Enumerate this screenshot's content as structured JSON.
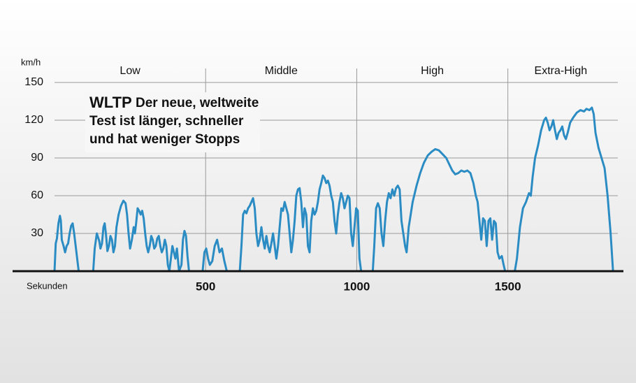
{
  "chart_data": {
    "type": "line",
    "title": "WLTP",
    "subtitle": [
      "Der neue, weltweite",
      "Test ist länger, schneller",
      "und hat weniger Stopps"
    ],
    "y_label": "km/h",
    "x_label": "Sekunden",
    "phases": [
      "Low",
      "Middle",
      "High",
      "Extra-High"
    ],
    "xlim": [
      0,
      1850
    ],
    "xticks": [
      500,
      1000,
      1500
    ],
    "ylim": [
      0,
      150
    ],
    "yticks": [
      30,
      60,
      90,
      120,
      150
    ],
    "grid": true,
    "series": [
      {
        "name": "WLTP",
        "color": "#2b8cc4",
        "x": [
          0,
          4,
          8,
          13,
          18,
          21,
          24,
          30,
          35,
          40,
          45,
          50,
          55,
          60,
          65,
          70,
          75,
          80,
          128,
          133,
          140,
          148,
          152,
          157,
          162,
          166,
          170,
          175,
          180,
          185,
          190,
          195,
          200,
          205,
          212,
          220,
          228,
          235,
          240,
          245,
          250,
          256,
          262,
          266,
          270,
          275,
          280,
          285,
          290,
          295,
          300,
          305,
          310,
          315,
          320,
          325,
          330,
          335,
          340,
          345,
          350,
          355,
          360,
          365,
          370,
          375,
          380,
          385,
          390,
          395,
          400,
          405,
          410,
          412,
          420,
          425,
          430,
          435,
          440,
          445,
          490,
          496,
          502,
          508,
          514,
          522,
          530,
          538,
          546,
          554,
          562,
          570,
          613,
          618.5,
          624,
          629.5,
          635,
          640.5,
          646,
          651.5,
          657,
          662.5,
          668,
          673.5,
          679,
          684.5,
          690,
          695.5,
          701,
          706.5,
          712,
          717.5,
          723,
          728.5,
          734,
          739.5,
          745,
          750.5,
          756,
          761.5,
          767,
          772.5,
          778,
          783.5,
          789,
          794.5,
          800,
          805.5,
          811,
          816.5,
          822,
          827.5,
          833,
          838.5,
          844,
          849.5,
          855,
          860.5,
          866,
          871.5,
          877,
          882.5,
          888,
          893.5,
          899,
          904.5,
          910,
          915.5,
          921,
          926.5,
          932,
          937.5,
          943,
          948.5,
          954,
          959.5,
          965,
          970.5,
          976,
          981.5,
          987,
          992.5,
          998,
          1003.5,
          1009,
          1014.5,
          1053,
          1058,
          1064,
          1070,
          1076,
          1082,
          1088,
          1094,
          1100,
          1106,
          1112,
          1118,
          1124,
          1130,
          1136,
          1142,
          1148,
          1154,
          1160,
          1165,
          1172,
          1185,
          1198,
          1210,
          1222,
          1235,
          1248,
          1260,
          1272,
          1284,
          1296,
          1306,
          1316,
          1326,
          1336,
          1346,
          1356,
          1366,
          1376,
          1386,
          1394,
          1400,
          1406,
          1412,
          1418,
          1424,
          1430,
          1436,
          1442,
          1448,
          1454,
          1460,
          1466,
          1472,
          1480,
          1486,
          1491,
          1523,
          1530,
          1540,
          1550,
          1560,
          1570,
          1576,
          1582,
          1590,
          1600,
          1610,
          1620,
          1626,
          1632,
          1638,
          1644,
          1650,
          1656,
          1662,
          1668,
          1674,
          1680,
          1686,
          1692,
          1698,
          1706,
          1716,
          1728,
          1740,
          1752,
          1760,
          1770,
          1778,
          1784,
          1790,
          1800,
          1810,
          1820,
          1830,
          1840,
          1848
        ],
        "values": [
          0,
          22,
          26,
          38,
          44,
          40,
          25,
          20,
          15,
          20,
          22,
          30,
          36,
          38,
          30,
          20,
          10,
          0,
          0,
          18,
          30,
          24,
          18,
          22,
          35,
          38,
          30,
          16,
          20,
          28,
          25,
          15,
          20,
          35,
          45,
          52,
          56,
          54,
          45,
          30,
          18,
          25,
          35,
          30,
          38,
          50,
          48,
          45,
          48,
          42,
          30,
          20,
          15,
          20,
          28,
          25,
          18,
          20,
          26,
          28,
          20,
          15,
          18,
          25,
          20,
          5,
          0,
          10,
          20,
          15,
          10,
          18,
          5,
          0,
          5,
          25,
          32,
          28,
          12,
          0,
          0,
          15,
          18,
          10,
          5,
          8,
          20,
          25,
          15,
          18,
          8,
          0,
          0,
          20,
          45,
          48,
          46,
          50,
          52,
          55,
          58,
          50,
          30,
          20,
          25,
          35,
          25,
          18,
          28,
          20,
          15,
          22,
          30,
          20,
          10,
          20,
          35,
          50,
          48,
          55,
          50,
          45,
          30,
          15,
          25,
          40,
          60,
          65,
          66,
          55,
          35,
          50,
          45,
          20,
          15,
          40,
          50,
          45,
          48,
          55,
          65,
          70,
          76,
          74,
          70,
          72,
          68,
          60,
          55,
          40,
          30,
          45,
          55,
          62,
          58,
          50,
          55,
          60,
          58,
          30,
          20,
          35,
          50,
          48,
          10,
          0,
          0,
          20,
          50,
          54,
          50,
          30,
          20,
          40,
          55,
          62,
          58,
          65,
          60,
          66,
          68,
          65,
          40,
          30,
          20,
          15,
          35,
          55,
          68,
          78,
          86,
          92,
          95,
          97,
          96,
          93,
          90,
          85,
          80,
          77,
          78,
          80,
          79,
          80,
          78,
          70,
          60,
          55,
          40,
          25,
          42,
          40,
          20,
          40,
          42,
          25,
          40,
          38,
          15,
          10,
          12,
          5,
          0,
          0,
          10,
          35,
          50,
          55,
          62,
          60,
          75,
          90,
          100,
          112,
          120,
          122,
          118,
          112,
          115,
          120,
          112,
          105,
          110,
          112,
          115,
          108,
          105,
          110,
          118,
          122,
          126,
          128,
          127,
          129,
          128,
          130,
          125,
          110,
          98,
          90,
          82,
          60,
          30,
          0
        ]
      }
    ]
  }
}
